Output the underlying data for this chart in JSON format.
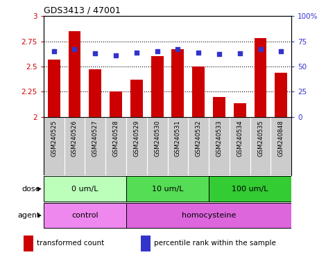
{
  "title": "GDS3413 / 47001",
  "samples": [
    "GSM240525",
    "GSM240526",
    "GSM240527",
    "GSM240528",
    "GSM240529",
    "GSM240530",
    "GSM240531",
    "GSM240532",
    "GSM240533",
    "GSM240534",
    "GSM240535",
    "GSM240848"
  ],
  "transformed_count": [
    2.57,
    2.85,
    2.47,
    2.25,
    2.37,
    2.6,
    2.67,
    2.5,
    2.2,
    2.14,
    2.78,
    2.44
  ],
  "percentile_rank": [
    65,
    67,
    63,
    61,
    64,
    65,
    67,
    64,
    62,
    63,
    67,
    65
  ],
  "bar_color": "#cc0000",
  "dot_color": "#3333cc",
  "ylim_left": [
    2.0,
    3.0
  ],
  "ylim_right": [
    0,
    100
  ],
  "yticks_left": [
    2.0,
    2.25,
    2.5,
    2.75,
    3.0
  ],
  "yticks_right": [
    0,
    25,
    50,
    75,
    100
  ],
  "ytick_labels_left": [
    "2",
    "2.25",
    "2.5",
    "2.75",
    "3"
  ],
  "ytick_labels_right": [
    "0",
    "25",
    "50",
    "75",
    "100%"
  ],
  "dose_groups": [
    {
      "label": "0 um/L",
      "start": 0,
      "end": 3,
      "color": "#bbffbb"
    },
    {
      "label": "10 um/L",
      "start": 4,
      "end": 7,
      "color": "#55dd55"
    },
    {
      "label": "100 um/L",
      "start": 8,
      "end": 11,
      "color": "#33cc33"
    }
  ],
  "agent_groups": [
    {
      "label": "control",
      "start": 0,
      "end": 3,
      "color": "#ee88ee"
    },
    {
      "label": "homocysteine",
      "start": 4,
      "end": 11,
      "color": "#dd66dd"
    }
  ],
  "legend_items": [
    {
      "color": "#cc0000",
      "label": "transformed count"
    },
    {
      "color": "#3333cc",
      "label": "percentile rank within the sample"
    }
  ],
  "dose_label": "dose",
  "agent_label": "agent",
  "background_color": "#ffffff",
  "tick_label_bg": "#cccccc",
  "tick_color_left": "#cc0000",
  "tick_color_right": "#3333cc"
}
